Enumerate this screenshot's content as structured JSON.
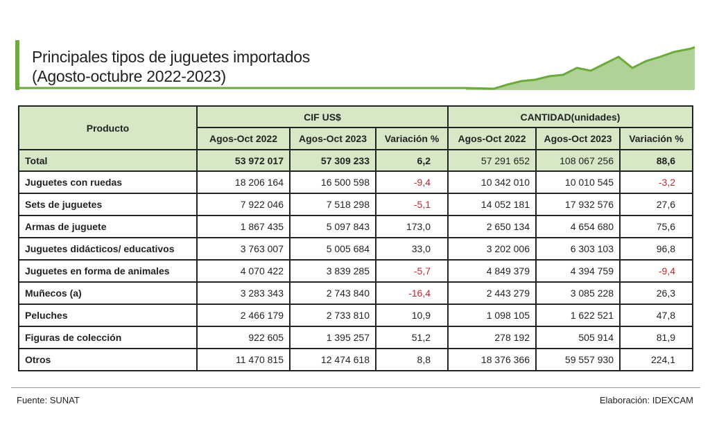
{
  "title": {
    "line1": "Principales tipos de juguetes importados",
    "line2": "(Agosto-octubre 2022-2023)"
  },
  "colors": {
    "accent": "#6aab3c",
    "header_bg": "#d7e8c7",
    "negative": "#c0282d"
  },
  "table": {
    "product_header": "Producto",
    "group_cif": "CIF  US$",
    "group_qty": "CANTIDAD(unidades)",
    "subheaders": [
      "Agos-Oct 2022",
      "Agos-Oct 2023",
      "Variación %",
      "Agos-Oct 2022",
      "Agos-Oct 2023",
      "Variación %"
    ],
    "total": [
      "Total",
      "53 972 017",
      "57 309 233",
      "6,2",
      "57 291 652",
      "108 067 256",
      "88,6"
    ],
    "rows": [
      [
        "Juguetes con ruedas",
        "18 206 164",
        "16 500 598",
        "-9,4",
        "10 342 010",
        "10 010 545",
        "-3,2"
      ],
      [
        "Sets de juguetes",
        "7 922 046",
        "7 518 298",
        "-5,1",
        "14 052 181",
        "17 932 576",
        "27,6"
      ],
      [
        "Armas de juguete",
        "1 867 435",
        "5 097 843",
        "173,0",
        "2 650 134",
        "4 654 680",
        "75,6"
      ],
      [
        "Juguetes didácticos/ educativos",
        "3 763 007",
        "5 005 684",
        "33,0",
        "3 202 006",
        "6 303 103",
        "96,8"
      ],
      [
        "Juguetes en forma de animales",
        "4 070 422",
        "3 839 285",
        "-5,7",
        "4 849 379",
        "4 394 759",
        "-9,4"
      ],
      [
        "Muñecos (a)",
        "3 283 343",
        "2 743 840",
        "-16,4",
        "2 443 279",
        "3 085 228",
        "26,3"
      ],
      [
        "Peluches",
        "2 466 179",
        "2 733 810",
        "10,9",
        "1 098 105",
        "1 622 521",
        "47,8"
      ],
      [
        "Figuras de colección",
        "922 605",
        "1 395 257",
        "51,2",
        "278 192",
        "505 914",
        "81,9"
      ],
      [
        "Otros",
        "11 470 815",
        "12 474 618",
        "8,8",
        "18 376 366",
        "59 557 930",
        "224,1"
      ]
    ]
  },
  "footer": {
    "source": "Fuente: SUNAT",
    "credit": "Elaboración: IDEXCAM"
  }
}
